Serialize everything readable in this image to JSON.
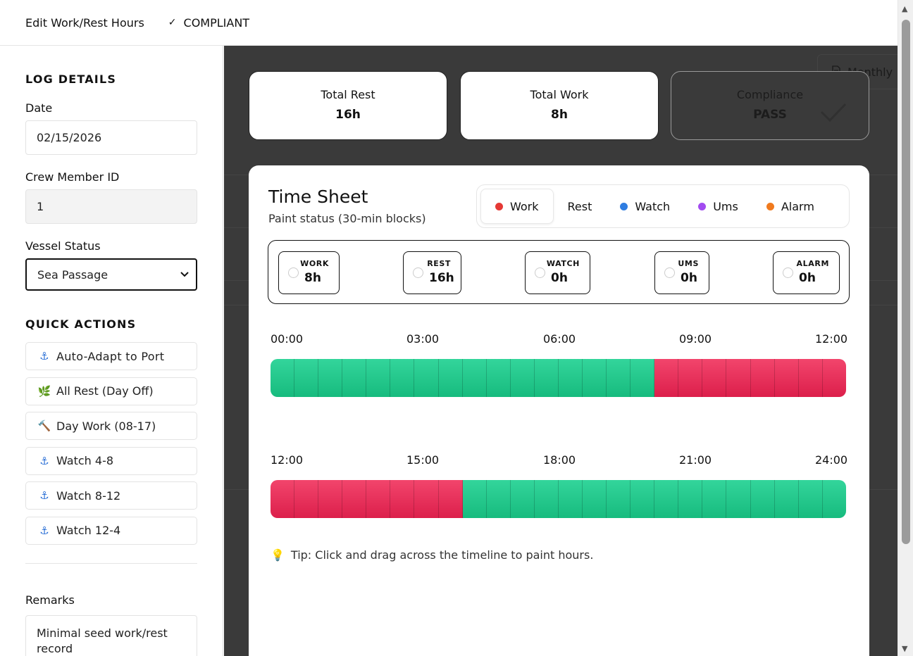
{
  "header": {
    "title": "Edit Work/Rest Hours",
    "status_icon": "checkmark-icon",
    "status_text": "COMPLIANT"
  },
  "sidebar": {
    "log_details_title": "LOG DETAILS",
    "date_label": "Date",
    "date_value": "02/15/2026",
    "crew_label": "Crew Member ID",
    "crew_value": "1",
    "vessel_label": "Vessel Status",
    "vessel_value": "Sea Passage",
    "quick_actions_title": "QUICK ACTIONS",
    "quick_actions": [
      {
        "label": "Auto-Adapt to Port",
        "icon": "anchor-icon"
      },
      {
        "label": "All Rest (Day Off)",
        "icon": "leaf-icon"
      },
      {
        "label": "Day Work (08-17)",
        "icon": "hammer-icon"
      },
      {
        "label": "Watch 4-8",
        "icon": "anchor-icon"
      },
      {
        "label": "Watch 8-12",
        "icon": "anchor-icon"
      },
      {
        "label": "Watch 12-4",
        "icon": "anchor-icon"
      }
    ],
    "remarks_label": "Remarks",
    "remarks_value": "Minimal seed work/rest record"
  },
  "main": {
    "monthly_label": "Monthly",
    "stats": [
      {
        "label": "Total Rest",
        "value": "16h"
      },
      {
        "label": "Total Work",
        "value": "8h"
      },
      {
        "label": "Compliance",
        "value": "PASS"
      }
    ],
    "timesheet": {
      "title": "Time Sheet",
      "subtitle": "Paint status (30-min blocks)",
      "legend": [
        {
          "label": "Work",
          "color": "#e53935",
          "active": true
        },
        {
          "label": "Rest",
          "color": "",
          "active": false
        },
        {
          "label": "Watch",
          "color": "#2f7de1",
          "active": false
        },
        {
          "label": "Ums",
          "color": "#a24bf0",
          "active": false
        },
        {
          "label": "Alarm",
          "color": "#f07a1e",
          "active": false
        }
      ],
      "counts": [
        {
          "label": "WORK",
          "value": "8h"
        },
        {
          "label": "REST",
          "value": "16h"
        },
        {
          "label": "WATCH",
          "value": "0h"
        },
        {
          "label": "UMS",
          "value": "0h"
        },
        {
          "label": "ALARM",
          "value": "0h"
        }
      ],
      "row1_ticks": [
        "00:00",
        "03:00",
        "06:00",
        "09:00",
        "12:00"
      ],
      "row2_ticks": [
        "12:00",
        "15:00",
        "18:00",
        "21:00",
        "24:00"
      ],
      "colors": {
        "work": "#e62a55",
        "rest": "#22c98b"
      },
      "row1_blocks": [
        "rest",
        "rest",
        "rest",
        "rest",
        "rest",
        "rest",
        "rest",
        "rest",
        "rest",
        "rest",
        "rest",
        "rest",
        "rest",
        "rest",
        "rest",
        "rest",
        "work",
        "work",
        "work",
        "work",
        "work",
        "work",
        "work",
        "work"
      ],
      "row2_blocks": [
        "work",
        "work",
        "work",
        "work",
        "work",
        "work",
        "work",
        "work",
        "rest",
        "rest",
        "rest",
        "rest",
        "rest",
        "rest",
        "rest",
        "rest",
        "rest",
        "rest",
        "rest",
        "rest",
        "rest",
        "rest",
        "rest",
        "rest"
      ],
      "tip": "Tip: Click and drag across the timeline to paint hours."
    }
  }
}
